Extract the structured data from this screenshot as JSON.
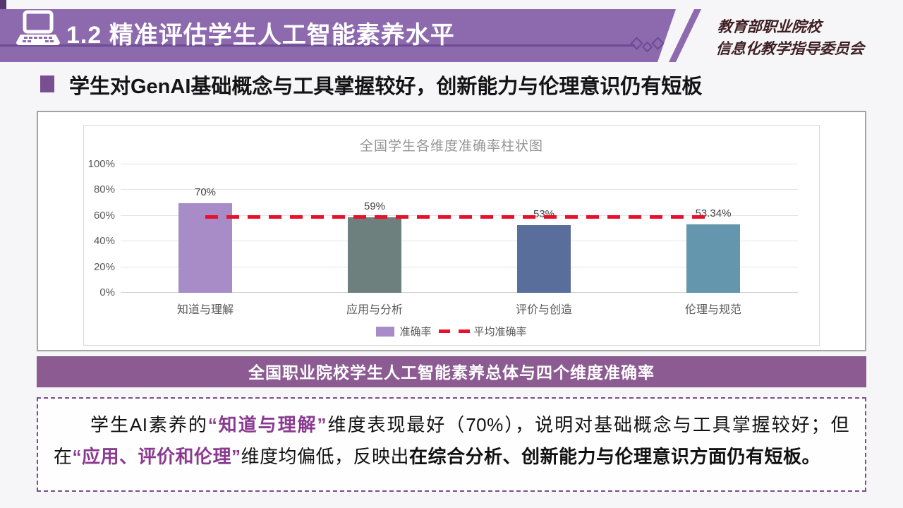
{
  "header": {
    "title": "1.2 精准评估学生人工智能素养水平",
    "org_line1": "教育部职业院校",
    "org_line2": "信息化教学指导委员会"
  },
  "bullet": {
    "text": "学生对GenAI基础概念与工具掌握较好，创新能力与伦理意识仍有短板"
  },
  "chart_data": {
    "type": "bar",
    "title": "全国学生各维度准确率柱状图",
    "categories": [
      "知道与理解",
      "应用与分析",
      "评价与创造",
      "伦理与规范"
    ],
    "values": [
      70,
      59,
      53,
      53.34
    ],
    "value_labels": [
      "70%",
      "59%",
      "53%",
      "53.34%"
    ],
    "bar_colors": [
      "#a78cc8",
      "#6e807e",
      "#5a6e9b",
      "#6496ae"
    ],
    "y_ticks": [
      0,
      20,
      40,
      60,
      80,
      100
    ],
    "y_tick_suffix": "%",
    "ylim": [
      0,
      100
    ],
    "grid": true,
    "average_line_value": 58.84,
    "average_line_color": "#e8112d",
    "legend_position": "bottom",
    "legend": [
      {
        "label": "准确率",
        "marker": "bar",
        "color": "#a78cc8"
      },
      {
        "label": "平均准确率",
        "marker": "dashed-line",
        "color": "#e8112d"
      }
    ]
  },
  "caption": {
    "text": "全国职业院校学生人工智能素养总体与四个维度准确率"
  },
  "analysis": {
    "segments": [
      {
        "text": "学生AI素养的",
        "style": "normal"
      },
      {
        "text": "“知道与理解”",
        "style": "purple"
      },
      {
        "text": "维度表现最好（70%），说明对基础概念与工具掌握较好；但在",
        "style": "normal"
      },
      {
        "text": "“应用、评价和伦理”",
        "style": "purple"
      },
      {
        "text": "维度均偏低，反映出",
        "style": "normal"
      },
      {
        "text": "在综合分析、创新能力与伦理意识方面仍有短板。",
        "style": "bold"
      }
    ]
  },
  "colors": {
    "banner_purple": "#8d69ae",
    "caption_purple": "#8b5b91",
    "accent_red": "#e8112d",
    "emphasis_purple": "#8a3a90",
    "page_background": "#f6f5f7"
  }
}
